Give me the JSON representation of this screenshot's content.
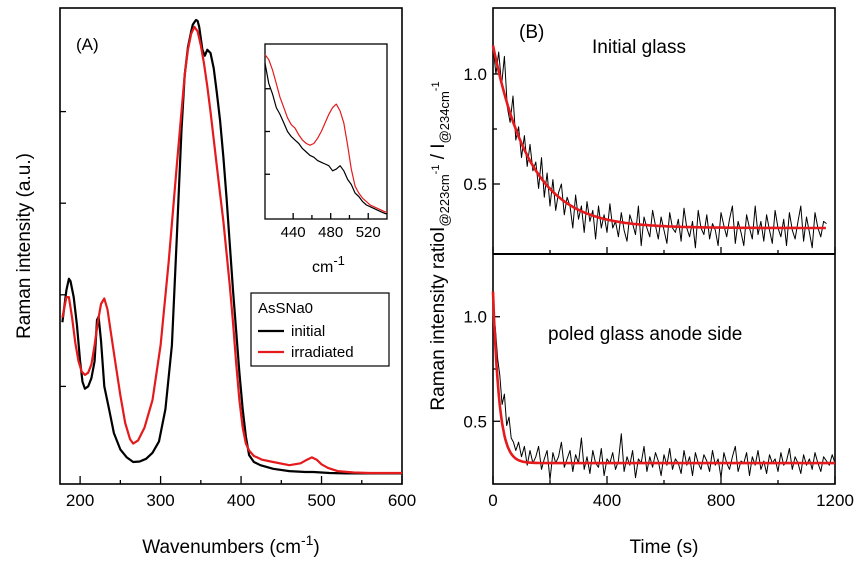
{
  "chart_data": [
    {
      "type": "line",
      "panel_label": "(A)",
      "xlabel": "Wavenumbers (cm",
      "xlabel_sup": "-1",
      "xlabel_end": ")",
      "ylabel": "Raman intensity (a.u.)",
      "xlim": [
        175,
        600
      ],
      "ylim": [
        0,
        1.0
      ],
      "xticks": [
        200,
        300,
        400,
        500,
        600
      ],
      "y_tick_labels": false,
      "legend": {
        "title": "AsSNa0",
        "placement": "middle-right"
      },
      "series": [
        {
          "name": "initial",
          "color": "#000000",
          "x": [
            178,
            183,
            186,
            188,
            192,
            196,
            200,
            203,
            206,
            210,
            214,
            218,
            221,
            223,
            226,
            230,
            236,
            242,
            250,
            258,
            266,
            274,
            282,
            290,
            298,
            306,
            314,
            320,
            326,
            330,
            334,
            338,
            340,
            342,
            344,
            346,
            348,
            350,
            352,
            355,
            358,
            362,
            366,
            370,
            374,
            378,
            382,
            386,
            390,
            394,
            398,
            402,
            406,
            410,
            416,
            424,
            440,
            460,
            480,
            490,
            500,
            510,
            530,
            560,
            600
          ],
          "y": [
            0.34,
            0.41,
            0.435,
            0.43,
            0.395,
            0.335,
            0.255,
            0.21,
            0.195,
            0.2,
            0.218,
            0.255,
            0.345,
            0.352,
            0.3,
            0.2,
            0.15,
            0.098,
            0.062,
            0.045,
            0.035,
            0.036,
            0.042,
            0.055,
            0.08,
            0.15,
            0.29,
            0.52,
            0.76,
            0.88,
            0.94,
            0.975,
            0.99,
            0.995,
            1.0,
            0.998,
            0.985,
            0.96,
            0.935,
            0.922,
            0.935,
            0.928,
            0.895,
            0.84,
            0.78,
            0.7,
            0.61,
            0.51,
            0.41,
            0.32,
            0.23,
            0.15,
            0.09,
            0.05,
            0.035,
            0.028,
            0.02,
            0.015,
            0.013,
            0.013,
            0.012,
            0.011,
            0.01,
            0.01,
            0.01
          ]
        },
        {
          "name": "irradiated",
          "color": "#e41a1c",
          "x": [
            178,
            183,
            186,
            190,
            194,
            198,
            202,
            206,
            210,
            214,
            218,
            222,
            226,
            230,
            234,
            238,
            244,
            250,
            256,
            262,
            266,
            272,
            280,
            290,
            300,
            310,
            320,
            326,
            330,
            334,
            338,
            342,
            346,
            350,
            354,
            358,
            362,
            366,
            370,
            374,
            378,
            382,
            386,
            390,
            394,
            398,
            402,
            406,
            410,
            416,
            420,
            426,
            440,
            460,
            474,
            482,
            488,
            494,
            500,
            508,
            520,
            540,
            560,
            600
          ],
          "y": [
            0.35,
            0.395,
            0.395,
            0.35,
            0.295,
            0.255,
            0.232,
            0.225,
            0.23,
            0.248,
            0.29,
            0.34,
            0.38,
            0.392,
            0.368,
            0.32,
            0.25,
            0.18,
            0.12,
            0.085,
            0.075,
            0.082,
            0.11,
            0.17,
            0.29,
            0.47,
            0.68,
            0.8,
            0.88,
            0.935,
            0.97,
            0.985,
            0.975,
            0.945,
            0.905,
            0.855,
            0.8,
            0.74,
            0.68,
            0.62,
            0.56,
            0.49,
            0.42,
            0.34,
            0.25,
            0.17,
            0.11,
            0.075,
            0.06,
            0.048,
            0.045,
            0.04,
            0.035,
            0.028,
            0.032,
            0.04,
            0.045,
            0.04,
            0.03,
            0.022,
            0.015,
            0.012,
            0.011,
            0.011
          ]
        }
      ],
      "inset": {
        "xlabel": "cm",
        "xlabel_sup": "-1",
        "xlim": [
          410,
          540
        ],
        "ylim": [
          0,
          1.0
        ],
        "xticks": [
          440,
          480,
          520
        ],
        "series": [
          {
            "name": "initial",
            "color": "#000000",
            "x": [
              410,
              414,
              418,
              422,
              426,
              430,
              434,
              438,
              442,
              446,
              450,
              454,
              458,
              462,
              466,
              470,
              474,
              478,
              482,
              486,
              490,
              494,
              498,
              502,
              506,
              510,
              514,
              518,
              522,
              526,
              530,
              534,
              538,
              540
            ],
            "y": [
              0.9,
              0.78,
              0.72,
              0.64,
              0.6,
              0.55,
              0.5,
              0.47,
              0.45,
              0.43,
              0.4,
              0.38,
              0.36,
              0.35,
              0.33,
              0.32,
              0.31,
              0.3,
              0.27,
              0.28,
              0.3,
              0.27,
              0.22,
              0.19,
              0.14,
              0.12,
              0.09,
              0.07,
              0.06,
              0.05,
              0.04,
              0.03,
              0.02,
              0.02
            ]
          },
          {
            "name": "irradiated",
            "color": "#e41a1c",
            "x": [
              410,
              414,
              418,
              422,
              426,
              430,
              434,
              438,
              442,
              446,
              450,
              454,
              458,
              462,
              466,
              470,
              474,
              478,
              482,
              486,
              490,
              494,
              498,
              502,
              506,
              510,
              514,
              518,
              522,
              526,
              530,
              534,
              538,
              540
            ],
            "y": [
              0.95,
              0.92,
              0.86,
              0.78,
              0.7,
              0.64,
              0.58,
              0.54,
              0.52,
              0.48,
              0.45,
              0.43,
              0.42,
              0.43,
              0.46,
              0.5,
              0.55,
              0.6,
              0.64,
              0.66,
              0.62,
              0.55,
              0.42,
              0.28,
              0.18,
              0.14,
              0.11,
              0.09,
              0.07,
              0.06,
              0.05,
              0.04,
              0.03,
              0.03
            ]
          }
        ]
      }
    },
    {
      "type": "line",
      "panel_label": "(B)",
      "xlabel": "Time (s)",
      "ylabel_main": "Raman intensity ratio",
      "ylabel_sub1": "@223cm",
      "ylabel_sub2": "@234cm",
      "ylabel_sup": "-1",
      "xlim": [
        0,
        1200
      ],
      "xticks": [
        0,
        400,
        800,
        1200
      ],
      "panels": [
        {
          "annotation": "Initial glass",
          "ylim": [
            0.2,
            1.3
          ],
          "yticks": [
            0.5,
            1.0
          ],
          "data": {
            "color": "#000000",
            "x": [
              0,
              10,
              20,
              30,
              40,
              50,
              60,
              70,
              80,
              90,
              100,
              110,
              120,
              130,
              140,
              150,
              160,
              170,
              180,
              190,
              200,
              210,
              220,
              230,
              240,
              250,
              260,
              270,
              280,
              290,
              300,
              310,
              320,
              330,
              340,
              350,
              360,
              370,
              380,
              390,
              400,
              410,
              420,
              430,
              440,
              450,
              460,
              470,
              480,
              490,
              500,
              510,
              520,
              530,
              540,
              550,
              560,
              570,
              580,
              590,
              600,
              610,
              620,
              630,
              640,
              650,
              660,
              670,
              680,
              690,
              700,
              710,
              720,
              730,
              740,
              750,
              760,
              770,
              780,
              790,
              800,
              810,
              820,
              830,
              840,
              850,
              860,
              870,
              880,
              890,
              900,
              910,
              920,
              930,
              940,
              950,
              960,
              970,
              980,
              990,
              1000,
              1010,
              1020,
              1030,
              1040,
              1050,
              1060,
              1070,
              1080,
              1090,
              1100,
              1110,
              1120,
              1130,
              1140,
              1150,
              1160,
              1170
            ],
            "y": [
              1.13,
              1.0,
              1.1,
              0.95,
              1.08,
              0.85,
              0.78,
              0.9,
              0.7,
              0.76,
              0.62,
              0.72,
              0.58,
              0.68,
              0.56,
              0.6,
              0.48,
              0.62,
              0.44,
              0.55,
              0.4,
              0.52,
              0.38,
              0.46,
              0.5,
              0.36,
              0.44,
              0.4,
              0.3,
              0.45,
              0.34,
              0.4,
              0.28,
              0.42,
              0.33,
              0.38,
              0.25,
              0.4,
              0.3,
              0.36,
              0.28,
              0.41,
              0.3,
              0.33,
              0.26,
              0.37,
              0.29,
              0.24,
              0.36,
              0.32,
              0.27,
              0.4,
              0.22,
              0.35,
              0.3,
              0.26,
              0.38,
              0.31,
              0.25,
              0.35,
              0.29,
              0.23,
              0.37,
              0.3,
              0.28,
              0.34,
              0.24,
              0.39,
              0.3,
              0.26,
              0.33,
              0.21,
              0.38,
              0.3,
              0.27,
              0.36,
              0.25,
              0.32,
              0.29,
              0.22,
              0.37,
              0.31,
              0.26,
              0.34,
              0.4,
              0.23,
              0.33,
              0.28,
              0.22,
              0.36,
              0.3,
              0.25,
              0.4,
              0.27,
              0.33,
              0.24,
              0.36,
              0.29,
              0.23,
              0.38,
              0.3,
              0.26,
              0.34,
              0.22,
              0.37,
              0.29,
              0.25,
              0.33,
              0.4,
              0.24,
              0.35,
              0.28,
              0.21,
              0.37,
              0.3,
              0.26,
              0.33,
              0.32
            ]
          },
          "fit": {
            "color": "#e41a1c",
            "model": "exponential",
            "y0": 0.3,
            "A": 0.83,
            "tau": 130
          }
        },
        {
          "annotation": "poled glass anode side",
          "ylim": [
            0.2,
            1.3
          ],
          "yticks": [
            0.5,
            1.0
          ],
          "data": {
            "color": "#000000",
            "x": [
              0,
              8,
              16,
              24,
              32,
              40,
              48,
              56,
              64,
              72,
              80,
              90,
              100,
              110,
              120,
              130,
              140,
              150,
              160,
              170,
              180,
              190,
              200,
              210,
              220,
              230,
              240,
              250,
              260,
              270,
              280,
              290,
              300,
              310,
              320,
              330,
              340,
              350,
              360,
              370,
              380,
              390,
              400,
              410,
              420,
              430,
              440,
              450,
              460,
              470,
              480,
              490,
              500,
              510,
              520,
              530,
              540,
              550,
              560,
              570,
              580,
              590,
              600,
              610,
              620,
              630,
              640,
              650,
              660,
              670,
              680,
              690,
              700,
              710,
              720,
              730,
              740,
              750,
              760,
              770,
              780,
              790,
              800,
              810,
              820,
              830,
              840,
              850,
              860,
              870,
              880,
              890,
              900,
              910,
              920,
              930,
              940,
              950,
              960,
              970,
              980,
              990,
              1000,
              1010,
              1020,
              1030,
              1040,
              1050,
              1060,
              1070,
              1080,
              1090,
              1100,
              1110,
              1120,
              1130,
              1140,
              1150,
              1160,
              1170,
              1180,
              1190,
              1200
            ],
            "y": [
              1.0,
              0.95,
              0.8,
              0.72,
              0.58,
              0.63,
              0.48,
              0.52,
              0.42,
              0.4,
              0.36,
              0.4,
              0.33,
              0.38,
              0.29,
              0.36,
              0.3,
              0.33,
              0.38,
              0.27,
              0.32,
              0.36,
              0.22,
              0.35,
              0.3,
              0.33,
              0.4,
              0.28,
              0.32,
              0.36,
              0.26,
              0.34,
              0.3,
              0.42,
              0.27,
              0.33,
              0.25,
              0.36,
              0.3,
              0.28,
              0.37,
              0.24,
              0.32,
              0.3,
              0.35,
              0.27,
              0.31,
              0.44,
              0.26,
              0.33,
              0.29,
              0.36,
              0.23,
              0.32,
              0.3,
              0.38,
              0.26,
              0.33,
              0.28,
              0.35,
              0.31,
              0.24,
              0.34,
              0.29,
              0.37,
              0.27,
              0.32,
              0.3,
              0.25,
              0.36,
              0.29,
              0.33,
              0.24,
              0.35,
              0.3,
              0.27,
              0.34,
              0.31,
              0.26,
              0.36,
              0.29,
              0.32,
              0.23,
              0.35,
              0.3,
              0.27,
              0.33,
              0.38,
              0.26,
              0.31,
              0.3,
              0.35,
              0.24,
              0.33,
              0.29,
              0.36,
              0.27,
              0.31,
              0.25,
              0.34,
              0.3,
              0.32,
              0.26,
              0.35,
              0.29,
              0.31,
              0.37,
              0.27,
              0.33,
              0.3,
              0.25,
              0.34,
              0.29,
              0.32,
              0.27,
              0.35,
              0.3,
              0.26,
              0.33,
              0.31,
              0.29,
              0.34,
              0.3
            ]
          },
          "fit": {
            "color": "#e41a1c",
            "model": "exponential",
            "y0": 0.3,
            "A": 0.82,
            "tau": 22
          }
        }
      ]
    }
  ]
}
